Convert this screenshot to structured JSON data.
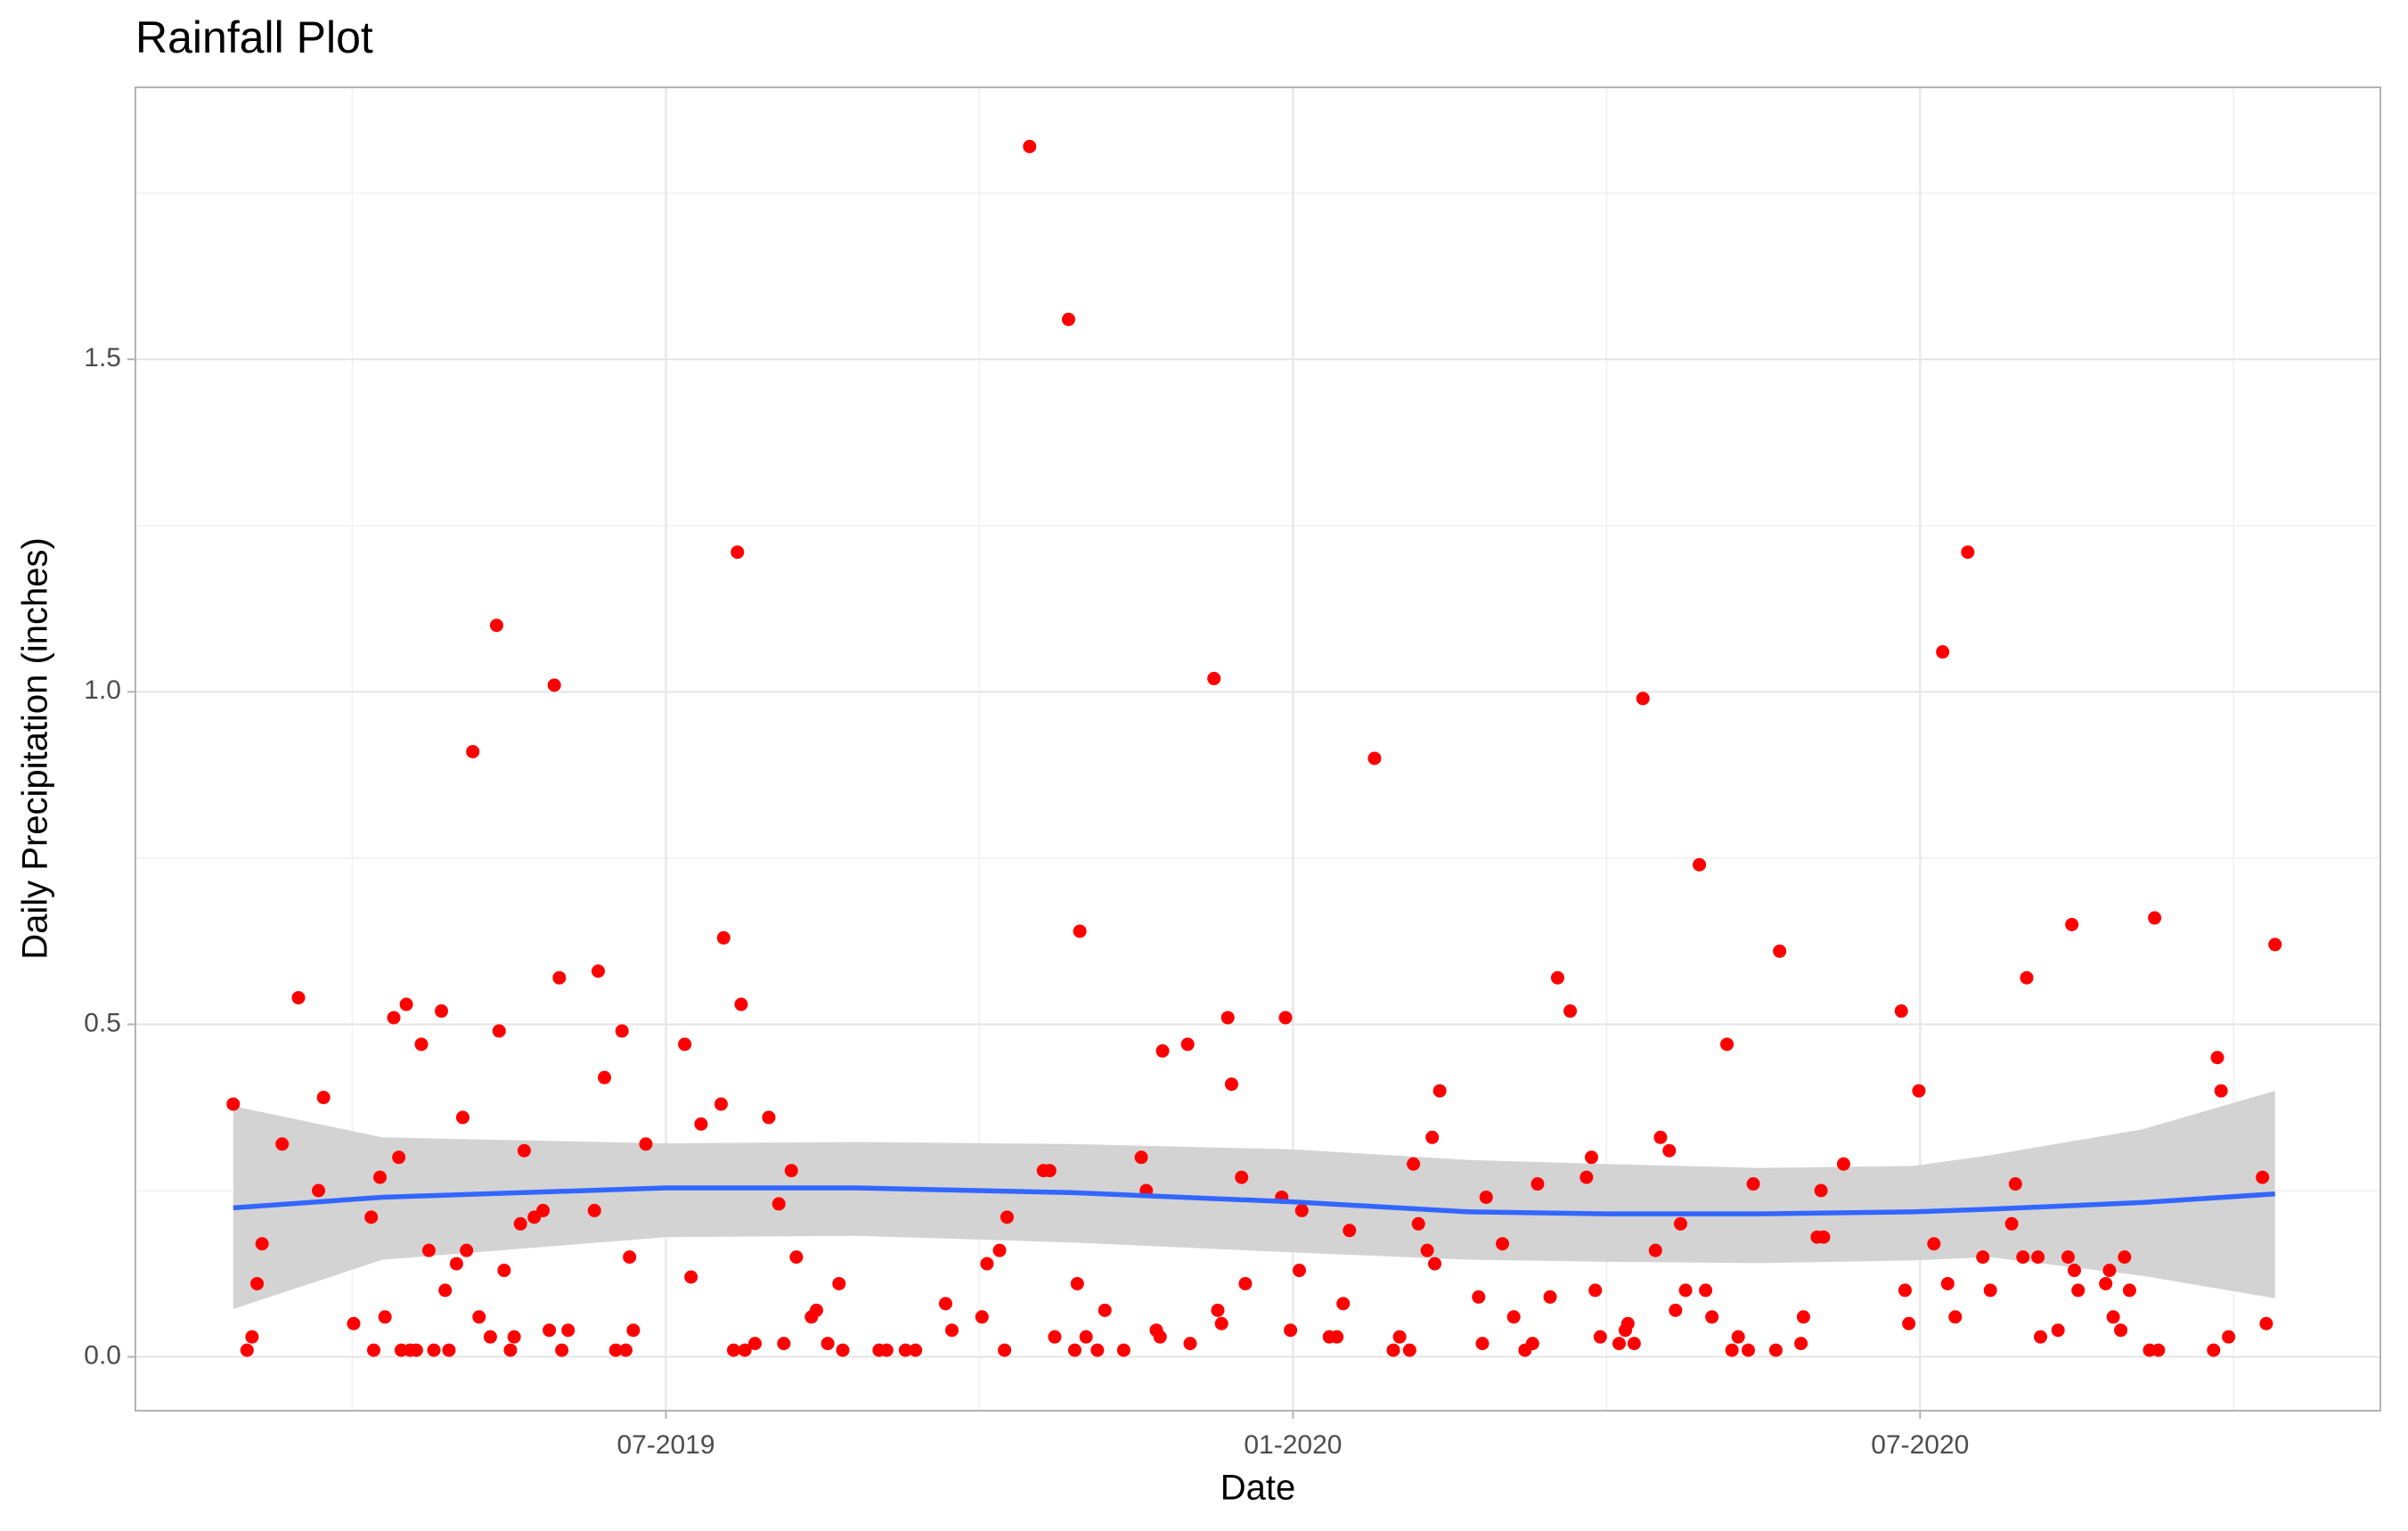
{
  "chart_data": {
    "type": "scatter",
    "title": "Rainfall Plot",
    "x_label": "Date",
    "y_label": "Daily Precipitation (inches)",
    "xlim": [
      2019.077,
      2020.867
    ],
    "ylim": [
      -0.081,
      1.909
    ],
    "xticks": [
      {
        "value": 2019.5,
        "label": "07-2019"
      },
      {
        "value": 2020.0,
        "label": "01-2020"
      },
      {
        "value": 2020.5,
        "label": "07-2020"
      }
    ],
    "yticks": [
      {
        "value": 0,
        "label": "0.0"
      },
      0.5,
      {
        "value": 1,
        "label": "1.0"
      },
      1.5
    ],
    "xminor": [
      2019.25,
      2019.75,
      2020.25,
      2020.75
    ],
    "yminor": [
      0.25,
      0.75,
      1.25,
      1.75
    ],
    "grid": true,
    "color": "#ff0000",
    "x": [
      2019.155,
      2019.166,
      2019.17,
      2019.174,
      2019.178,
      2019.194,
      2019.207,
      2019.223,
      2019.227,
      2019.251,
      2019.265,
      2019.267,
      2019.272,
      2019.276,
      2019.283,
      2019.287,
      2019.289,
      2019.293,
      2019.296,
      2019.301,
      2019.305,
      2019.311,
      2019.315,
      2019.321,
      2019.324,
      2019.327,
      2019.333,
      2019.338,
      2019.341,
      2019.346,
      2019.351,
      2019.36,
      2019.365,
      2019.367,
      2019.371,
      2019.376,
      2019.379,
      2019.384,
      2019.387,
      2019.395,
      2019.402,
      2019.407,
      2019.411,
      2019.415,
      2019.417,
      2019.422,
      2019.443,
      2019.446,
      2019.451,
      2019.46,
      2019.465,
      2019.468,
      2019.471,
      2019.474,
      2019.484,
      2019.515,
      2019.52,
      2019.528,
      2019.544,
      2019.546,
      2019.554,
      2019.557,
      2019.56,
      2019.563,
      2019.571,
      2019.582,
      2019.59,
      2019.594,
      2019.6,
      2019.604,
      2019.616,
      2019.62,
      2019.629,
      2019.638,
      2019.641,
      2019.67,
      2019.676,
      2019.691,
      2019.699,
      2019.723,
      2019.728,
      2019.752,
      2019.756,
      2019.766,
      2019.77,
      2019.772,
      2019.79,
      2019.801,
      2019.806,
      2019.81,
      2019.821,
      2019.826,
      2019.828,
      2019.83,
      2019.835,
      2019.844,
      2019.85,
      2019.865,
      2019.879,
      2019.883,
      2019.891,
      2019.894,
      2019.896,
      2019.916,
      2019.918,
      2019.937,
      2019.94,
      2019.943,
      2019.948,
      2019.951,
      2019.959,
      2019.962,
      2019.991,
      2019.994,
      2019.998,
      2020.005,
      2020.007,
      2020.029,
      2020.035,
      2020.04,
      2020.045,
      2020.065,
      2020.08,
      2020.085,
      2020.093,
      2020.096,
      2020.1,
      2020.107,
      2020.111,
      2020.113,
      2020.117,
      2020.148,
      2020.151,
      2020.154,
      2020.167,
      2020.176,
      2020.185,
      2020.191,
      2020.195,
      2020.205,
      2020.211,
      2020.221,
      2020.234,
      2020.238,
      2020.241,
      2020.245,
      2020.26,
      2020.265,
      2020.267,
      2020.272,
      2020.279,
      2020.289,
      2020.293,
      2020.3,
      2020.305,
      2020.309,
      2020.313,
      2020.324,
      2020.329,
      2020.334,
      2020.346,
      2020.35,
      2020.355,
      2020.363,
      2020.367,
      2020.385,
      2020.388,
      2020.405,
      2020.407,
      2020.418,
      2020.421,
      2020.423,
      2020.439,
      2020.485,
      2020.488,
      2020.491,
      2020.499,
      2020.511,
      2020.518,
      2020.522,
      2020.528,
      2020.538,
      2020.55,
      2020.556,
      2020.573,
      2020.576,
      2020.582,
      2020.585,
      2020.594,
      2020.596,
      2020.61,
      2020.618,
      2020.621,
      2020.623,
      2020.626,
      2020.648,
      2020.651,
      2020.654,
      2020.66,
      2020.663,
      2020.667,
      2020.683,
      2020.687,
      2020.69,
      2020.734,
      2020.737,
      2020.74,
      2020.746,
      2020.773,
      2020.776,
      2020.783
    ],
    "values": [
      0.38,
      0.01,
      0.03,
      0.11,
      0.17,
      0.32,
      0.54,
      0.25,
      0.39,
      0.05,
      0.21,
      0.01,
      0.27,
      0.06,
      0.51,
      0.3,
      0.01,
      0.53,
      0.01,
      0.01,
      0.47,
      0.16,
      0.01,
      0.52,
      0.1,
      0.01,
      0.14,
      0.36,
      0.16,
      0.91,
      0.06,
      0.03,
      1.1,
      0.49,
      0.13,
      0.01,
      0.03,
      0.2,
      0.31,
      0.21,
      0.22,
      0.04,
      1.01,
      0.57,
      0.01,
      0.04,
      0.22,
      0.58,
      0.42,
      0.01,
      0.49,
      0.01,
      0.15,
      0.04,
      0.32,
      0.47,
      0.12,
      0.35,
      0.38,
      0.63,
      0.01,
      1.21,
      0.53,
      0.01,
      0.02,
      0.36,
      0.23,
      0.02,
      0.28,
      0.15,
      0.06,
      0.07,
      0.02,
      0.11,
      0.01,
      0.01,
      0.01,
      0.01,
      0.01,
      0.08,
      0.04,
      0.06,
      0.14,
      0.16,
      0.01,
      0.21,
      1.82,
      0.28,
      0.28,
      0.03,
      1.56,
      0.01,
      0.11,
      0.64,
      0.03,
      0.01,
      0.07,
      0.01,
      0.3,
      0.25,
      0.04,
      0.03,
      0.46,
      0.47,
      0.02,
      1.02,
      0.07,
      0.05,
      0.51,
      0.41,
      0.27,
      0.11,
      0.24,
      0.51,
      0.04,
      0.13,
      0.22,
      0.03,
      0.03,
      0.08,
      0.19,
      0.9,
      0.01,
      0.03,
      0.01,
      0.29,
      0.2,
      0.16,
      0.33,
      0.14,
      0.4,
      0.09,
      0.02,
      0.24,
      0.17,
      0.06,
      0.01,
      0.02,
      0.26,
      0.09,
      0.57,
      0.52,
      0.27,
      0.3,
      0.1,
      0.03,
      0.02,
      0.04,
      0.05,
      0.02,
      0.99,
      0.16,
      0.33,
      0.31,
      0.07,
      0.2,
      0.1,
      0.74,
      0.1,
      0.06,
      0.47,
      0.01,
      0.03,
      0.01,
      0.26,
      0.01,
      0.61,
      0.02,
      0.06,
      0.18,
      0.25,
      0.18,
      0.29,
      0.52,
      0.1,
      0.05,
      0.4,
      0.17,
      1.06,
      0.11,
      0.06,
      1.21,
      0.15,
      0.1,
      0.2,
      0.26,
      0.15,
      0.57,
      0.15,
      0.03,
      0.04,
      0.15,
      0.65,
      0.13,
      0.1,
      0.11,
      0.13,
      0.06,
      0.04,
      0.15,
      0.1,
      0.01,
      0.66,
      0.01,
      0.01,
      0.45,
      0.4,
      0.03,
      0.27,
      0.05,
      0.62
    ],
    "smooth": {
      "color": "#3366ff",
      "band_color": "#d3d3d3",
      "x": [
        2019.155,
        2019.274,
        2019.5,
        2019.652,
        2019.823,
        2020.0,
        2020.14,
        2020.25,
        2020.372,
        2020.494,
        2020.555,
        2020.677,
        2020.783
      ],
      "values": [
        0.224,
        0.24,
        0.254,
        0.254,
        0.247,
        0.233,
        0.218,
        0.215,
        0.215,
        0.218,
        0.222,
        0.232,
        0.245
      ],
      "upper": [
        0.377,
        0.33,
        0.321,
        0.323,
        0.32,
        0.312,
        0.296,
        0.29,
        0.284,
        0.287,
        0.303,
        0.342,
        0.4
      ],
      "lower": [
        0.072,
        0.146,
        0.18,
        0.182,
        0.172,
        0.157,
        0.146,
        0.143,
        0.141,
        0.145,
        0.15,
        0.122,
        0.088
      ]
    }
  }
}
